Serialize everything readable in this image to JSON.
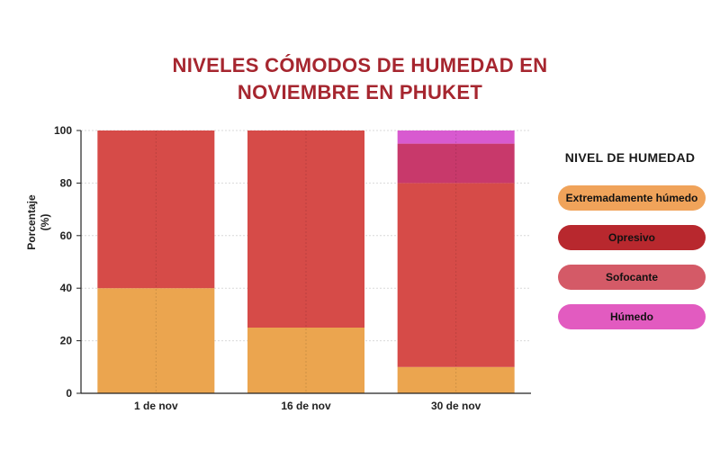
{
  "chart_data": {
    "type": "bar",
    "stacked": true,
    "title": "NIVELES CÓMODOS DE HUMEDAD EN\nNOVIEMBRE EN PHUKET",
    "xlabel": "",
    "ylabel": "Porcentaje\n(%)",
    "ylim": [
      0,
      100
    ],
    "yticks": [
      "0",
      "20",
      "40",
      "60",
      "80",
      "100"
    ],
    "grid": true,
    "legend_title": "NIVEL DE HUMEDAD",
    "legend_position": "right",
    "categories": [
      "1 de nov",
      "16 de nov",
      "30 de nov"
    ],
    "series": [
      {
        "name": "Extremadamente húmedo",
        "color": "#eba54f",
        "values": [
          40,
          25,
          10
        ]
      },
      {
        "name": "Opresivo",
        "color": "#d64b48",
        "values": [
          60,
          75,
          70
        ]
      },
      {
        "name": "Sofocante",
        "color": "#c8396b",
        "values": [
          0,
          0,
          15
        ]
      },
      {
        "name": "Húmedo",
        "color": "#d85ad0",
        "values": [
          0,
          0,
          5
        ]
      }
    ],
    "legend_colors": [
      "#f0a35a",
      "#b8282e",
      "#d45a67",
      "#e25bc0"
    ]
  }
}
